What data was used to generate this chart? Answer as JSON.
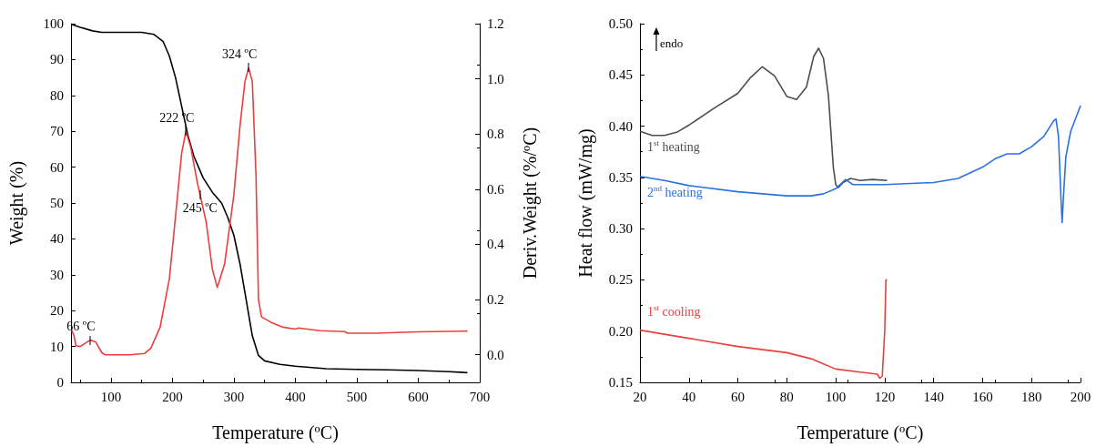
{
  "chart_data": [
    {
      "type": "line",
      "xlabel": "Temperature (ºC)",
      "ylabel": "Weight (%)",
      "y2label": "Deriv.Weight (%/ºC)",
      "xlim": [
        35,
        700
      ],
      "xticks": [
        100,
        200,
        300,
        400,
        500,
        600,
        700
      ],
      "ylim": [
        0,
        100
      ],
      "yticks": [
        0,
        10,
        20,
        30,
        40,
        50,
        60,
        70,
        80,
        90,
        100
      ],
      "y2lim": [
        -0.1,
        1.2
      ],
      "y2ticks": [
        {
          "value": 0,
          "label": "0.0"
        },
        {
          "value": 0.2,
          "label": "0.2"
        },
        {
          "value": 0.4,
          "label": "0.4"
        },
        {
          "value": 0.6,
          "label": "0.6"
        },
        {
          "value": 0.8,
          "label": "0.8"
        },
        {
          "value": 1,
          "label": "1.0"
        },
        {
          "value": 1.2,
          "label": "1.2"
        }
      ],
      "grid": false,
      "legend": false,
      "series": [
        {
          "color": "#000000",
          "x": [
            36,
            50,
            70,
            85,
            150,
            170,
            185,
            195,
            205,
            215,
            225,
            235,
            250,
            265,
            280,
            290,
            300,
            310,
            320,
            330,
            340,
            350,
            375,
            400,
            450,
            500,
            550,
            600,
            650,
            680
          ],
          "values": [
            99.8,
            99,
            98,
            97.6,
            97.6,
            97,
            95,
            91,
            85,
            77,
            69,
            63,
            57,
            53,
            50,
            46,
            41,
            33,
            23,
            13,
            7.5,
            6,
            5,
            4.5,
            3.8,
            3.6,
            3.5,
            3.3,
            3,
            2.7
          ]
        },
        {
          "color": "#f03c3c",
          "axis": "y2",
          "x": [
            36,
            40,
            43,
            50,
            66,
            75,
            85,
            90,
            130,
            155,
            165,
            180,
            195,
            205,
            215,
            222,
            230,
            240,
            245,
            255,
            265,
            273,
            285,
            300,
            310,
            318,
            324,
            330,
            336,
            340,
            345,
            360,
            380,
            400,
            405,
            440,
            480,
            485,
            530,
            600,
            680
          ],
          "values": [
            0.09,
            0.068,
            0.033,
            0.03,
            0.053,
            0.047,
            0.008,
            0,
            0,
            0.005,
            0.024,
            0.1,
            0.275,
            0.5,
            0.73,
            0.81,
            0.75,
            0.63,
            0.58,
            0.48,
            0.31,
            0.244,
            0.33,
            0.58,
            0.83,
            0.99,
            1.04,
            0.99,
            0.65,
            0.2,
            0.137,
            0.118,
            0.1,
            0.093,
            0.097,
            0.087,
            0.084,
            0.078,
            0.078,
            0.083,
            0.086
          ]
        }
      ],
      "annotations": [
        {
          "text": "66 ºC",
          "x": 66,
          "y": 11.8
        },
        {
          "text": "222 ºC",
          "x": 222,
          "y": 70
        },
        {
          "text": "245 ºC",
          "x": 245,
          "y": 52.3
        },
        {
          "text": "324 ºC",
          "x": 324,
          "y": 87.7
        }
      ]
    },
    {
      "type": "line",
      "xlabel": "Temperature (ºC)",
      "ylabel": "Heat flow (mW/mg)",
      "xlim": [
        20,
        200
      ],
      "xticks": [
        20,
        40,
        60,
        80,
        100,
        120,
        140,
        160,
        180,
        200
      ],
      "ylim": [
        0.15,
        0.5
      ],
      "yticks": [
        0.15,
        {
          "value": 0.2,
          "label": "0.20"
        },
        0.25,
        {
          "value": 0.3,
          "label": "0.30"
        },
        0.35,
        {
          "value": 0.4,
          "label": "0.40"
        },
        0.45,
        {
          "value": 0.5,
          "label": "0.50"
        }
      ],
      "grid": false,
      "legend": false,
      "series": [
        {
          "name": "1$^{st}$ heating",
          "color": "#4d4d4d",
          "x": [
            20,
            25,
            30,
            35,
            40,
            50,
            60,
            65,
            70,
            75,
            80,
            84,
            88,
            91,
            93,
            95,
            97,
            99,
            100,
            101,
            103,
            106,
            110,
            115,
            121
          ],
          "values": [
            0.395,
            0.391,
            0.391,
            0.394,
            0.401,
            0.417,
            0.432,
            0.447,
            0.458,
            0.449,
            0.429,
            0.426,
            0.438,
            0.468,
            0.476,
            0.466,
            0.43,
            0.36,
            0.343,
            0.34,
            0.345,
            0.349,
            0.347,
            0.348,
            0.347
          ]
        },
        {
          "name": "2$^{nd}$ heating",
          "color": "#2a72e0",
          "x": [
            20,
            30,
            40,
            60,
            80,
            90,
            95,
            100,
            104,
            107,
            120,
            140,
            150,
            160,
            165,
            170,
            175,
            180,
            185,
            189,
            190,
            191,
            192,
            192.5,
            193,
            194,
            196,
            200
          ],
          "values": [
            0.351,
            0.347,
            0.342,
            0.336,
            0.332,
            0.332,
            0.334,
            0.339,
            0.348,
            0.343,
            0.343,
            0.345,
            0.349,
            0.36,
            0.368,
            0.373,
            0.373,
            0.38,
            0.39,
            0.405,
            0.407,
            0.39,
            0.33,
            0.306,
            0.33,
            0.37,
            0.395,
            0.42
          ]
        },
        {
          "name": "1$^{st}$ cooling",
          "color": "#e8413c",
          "x": [
            20,
            30,
            40,
            60,
            80,
            90,
            95,
            100,
            110,
            117,
            118,
            119,
            120,
            120.5,
            121
          ],
          "values": [
            0.201,
            0.197,
            0.193,
            0.185,
            0.179,
            0.173,
            0.168,
            0.163,
            0.16,
            0.158,
            0.154,
            0.156,
            0.2,
            0.25,
            0.25
          ]
        }
      ],
      "annotations": [
        "endo"
      ]
    }
  ]
}
